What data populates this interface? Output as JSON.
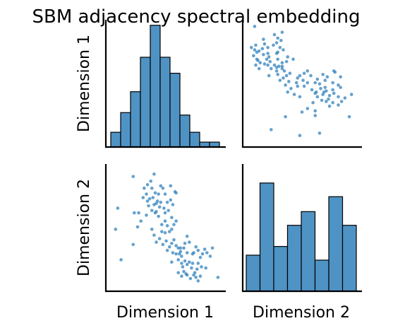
{
  "chart_data": {
    "type": "pairplot",
    "title": "SBM adjacency spectral embedding",
    "variables": [
      "Dimension 1",
      "Dimension 2"
    ],
    "bar_color": "#4f93c4",
    "point_color": "#3a86bf",
    "grid": false,
    "ticks_shown": false,
    "hist_dim1": {
      "bin_fractions": [
        0.12,
        0.28,
        0.45,
        0.73,
        0.99,
        0.73,
        0.6,
        0.26,
        0.12,
        0.04,
        0.04
      ],
      "range": [
        0.0,
        1.0
      ]
    },
    "hist_dim2": {
      "bin_fractions": [
        0.29,
        0.87,
        0.36,
        0.53,
        0.64,
        0.25,
        0.76,
        0.53
      ],
      "range": [
        0.0,
        1.0
      ]
    },
    "points": [
      [
        0.07,
        0.66
      ],
      [
        0.1,
        0.22
      ],
      [
        0.05,
        0.48
      ],
      [
        0.21,
        0.35
      ],
      [
        0.21,
        0.93
      ],
      [
        0.3,
        0.75
      ],
      [
        0.33,
        0.78
      ],
      [
        0.34,
        0.72
      ],
      [
        0.31,
        0.83
      ],
      [
        0.34,
        0.86
      ],
      [
        0.37,
        0.89
      ],
      [
        0.38,
        0.83
      ],
      [
        0.4,
        0.95
      ],
      [
        0.36,
        0.74
      ],
      [
        0.39,
        0.75
      ],
      [
        0.41,
        0.79
      ],
      [
        0.42,
        0.7
      ],
      [
        0.44,
        0.78
      ],
      [
        0.46,
        0.85
      ],
      [
        0.48,
        0.83
      ],
      [
        0.49,
        0.66
      ],
      [
        0.5,
        0.62
      ],
      [
        0.53,
        0.64
      ],
      [
        0.55,
        0.85
      ],
      [
        0.55,
        0.73
      ],
      [
        0.57,
        0.69
      ],
      [
        0.59,
        0.8
      ],
      [
        0.56,
        0.58
      ],
      [
        0.6,
        0.79
      ],
      [
        0.33,
        0.6
      ],
      [
        0.4,
        0.69
      ],
      [
        0.43,
        0.72
      ],
      [
        0.45,
        0.67
      ],
      [
        0.46,
        0.71
      ],
      [
        0.5,
        0.78
      ],
      [
        0.52,
        0.71
      ],
      [
        0.38,
        0.64
      ],
      [
        0.41,
        0.62
      ],
      [
        0.44,
        0.59
      ],
      [
        0.47,
        0.52
      ],
      [
        0.5,
        0.55
      ],
      [
        0.52,
        0.51
      ],
      [
        0.54,
        0.46
      ],
      [
        0.56,
        0.48
      ],
      [
        0.58,
        0.52
      ],
      [
        0.6,
        0.55
      ],
      [
        0.35,
        0.68
      ],
      [
        0.28,
        0.55
      ],
      [
        0.25,
        0.5
      ],
      [
        0.22,
        0.62
      ],
      [
        0.26,
        0.62
      ],
      [
        0.42,
        0.37
      ],
      [
        0.38,
        0.48
      ],
      [
        0.4,
        0.43
      ],
      [
        0.45,
        0.4
      ],
      [
        0.48,
        0.35
      ],
      [
        0.5,
        0.45
      ],
      [
        0.52,
        0.3
      ],
      [
        0.54,
        0.33
      ],
      [
        0.56,
        0.36
      ],
      [
        0.58,
        0.39
      ],
      [
        0.6,
        0.34
      ],
      [
        0.62,
        0.32
      ],
      [
        0.63,
        0.27
      ],
      [
        0.65,
        0.25
      ],
      [
        0.64,
        0.29
      ],
      [
        0.67,
        0.32
      ],
      [
        0.68,
        0.36
      ],
      [
        0.7,
        0.42
      ],
      [
        0.72,
        0.37
      ],
      [
        0.75,
        0.27
      ],
      [
        0.78,
        0.33
      ],
      [
        0.8,
        0.3
      ],
      [
        0.82,
        0.24
      ],
      [
        0.84,
        0.27
      ],
      [
        0.6,
        0.27
      ],
      [
        0.62,
        0.22
      ],
      [
        0.65,
        0.19
      ],
      [
        0.66,
        0.16
      ],
      [
        0.68,
        0.21
      ],
      [
        0.7,
        0.18
      ],
      [
        0.72,
        0.2
      ],
      [
        0.74,
        0.15
      ],
      [
        0.75,
        0.19
      ],
      [
        0.77,
        0.11
      ],
      [
        0.79,
        0.14
      ],
      [
        0.8,
        0.19
      ],
      [
        0.83,
        0.16
      ],
      [
        0.62,
        0.11
      ],
      [
        0.65,
        0.08
      ],
      [
        0.67,
        0.12
      ],
      [
        0.7,
        0.09
      ],
      [
        0.73,
        0.06
      ],
      [
        0.76,
        0.09
      ],
      [
        0.78,
        0.07
      ],
      [
        0.8,
        0.04
      ],
      [
        0.82,
        0.08
      ],
      [
        0.93,
        0.32
      ],
      [
        0.98,
        0.07
      ],
      [
        0.7,
        0.28
      ],
      [
        0.88,
        0.28
      ],
      [
        0.87,
        0.15
      ],
      [
        0.76,
        0.28
      ],
      [
        0.57,
        0.28
      ],
      [
        0.91,
        0.25
      ],
      [
        0.56,
        0.2
      ],
      [
        0.69,
        0.1
      ],
      [
        0.86,
        0.31
      ],
      [
        0.64,
        0.32
      ],
      [
        0.47,
        0.46
      ],
      [
        0.42,
        0.63
      ],
      [
        0.51,
        0.38
      ]
    ]
  }
}
